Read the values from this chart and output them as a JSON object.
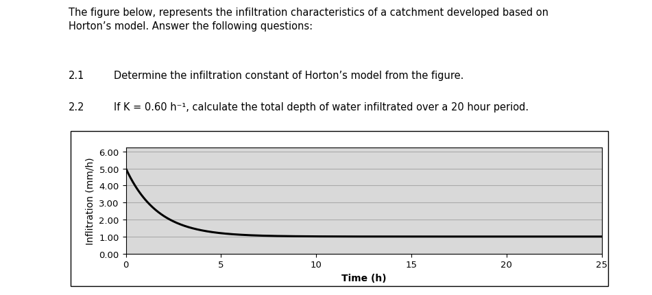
{
  "title_text": "The figure below, represents the infiltration characteristics of a catchment developed based on\nHorton’s model. Answer the following questions:",
  "q1_label": "2.1",
  "q1_body": "Determine the infiltration constant of Horton’s model from the figure.",
  "q2_label": "2.2",
  "q2_body": "If K = 0.60 h⁻¹, calculate the total depth of water infiltrated over a 20 hour period.",
  "xlabel": "Time (h)",
  "ylabel": "Inflitration (mm/h)",
  "xlim": [
    0,
    25
  ],
  "ylim": [
    0.0,
    6.5
  ],
  "ymin_display": 0.0,
  "ymax_display": 6.0,
  "yticks": [
    0.0,
    1.0,
    2.0,
    3.0,
    4.0,
    5.0,
    6.0
  ],
  "xticks": [
    0,
    5,
    10,
    15,
    20,
    25
  ],
  "f0": 5.0,
  "fc": 1.0,
  "k": 0.6,
  "line_color": "#000000",
  "line_width": 2.2,
  "grid_color": "#aaaaaa",
  "bg_color": "#ffffff",
  "plot_bg_color": "#d9d9d9",
  "text_fontsize": 10.5,
  "axis_label_fontsize": 10,
  "tick_fontsize": 9.5,
  "xlabel_fontweight": "bold"
}
